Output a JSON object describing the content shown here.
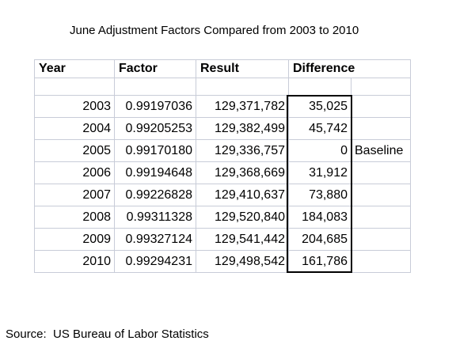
{
  "page": {
    "title": "June Adjustment Factors Compared from 2003 to 2010",
    "source_note": "Source:  US Bureau of Labor Statistics"
  },
  "colors": {
    "background": "#ffffff",
    "text": "#000000",
    "gridline": "#c8ccd8",
    "highlight_box": "#000000"
  },
  "table": {
    "headers": [
      "Year",
      "Factor",
      "Result",
      "Difference"
    ],
    "rows": [
      {
        "year": "2003",
        "factor": "0.99197036",
        "result": "129,371,782",
        "difference": "35,025",
        "note": ""
      },
      {
        "year": "2004",
        "factor": "0.99205253",
        "result": "129,382,499",
        "difference": "45,742",
        "note": ""
      },
      {
        "year": "2005",
        "factor": "0.99170180",
        "result": "129,336,757",
        "difference": "0",
        "note": "Baseline"
      },
      {
        "year": "2006",
        "factor": "0.99194648",
        "result": "129,368,669",
        "difference": "31,912",
        "note": ""
      },
      {
        "year": "2007",
        "factor": "0.99226828",
        "result": "129,410,637",
        "difference": "73,880",
        "note": ""
      },
      {
        "year": "2008",
        "factor": "0.99311328",
        "result": "129,520,840",
        "difference": "184,083",
        "note": ""
      },
      {
        "year": "2009",
        "factor": "0.99327124",
        "result": "129,541,442",
        "difference": "204,685",
        "note": ""
      },
      {
        "year": "2010",
        "factor": "0.99294231",
        "result": "129,498,542",
        "difference": "161,786",
        "note": ""
      }
    ]
  }
}
